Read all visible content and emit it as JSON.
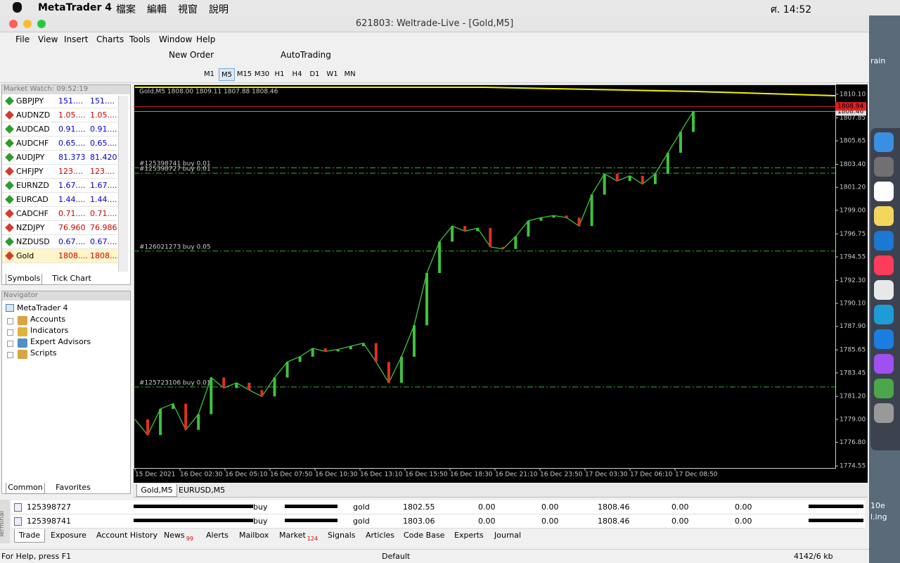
{
  "mac_menu": {
    "app": "MetaTrader 4",
    "items": [
      "檔案",
      "編輯",
      "視窗",
      "說明"
    ],
    "clock": "ศ. 14:52"
  },
  "window_title": "621803: Weltrade-Live - [Gold,M5]",
  "menu": [
    "File",
    "View",
    "Insert",
    "Charts",
    "Tools",
    "Window",
    "Help"
  ],
  "toolbar": {
    "new_order": "New Order",
    "auto_trading": "AutoTrading",
    "timeframes": [
      "M1",
      "M5",
      "M15",
      "M30",
      "H1",
      "H4",
      "D1",
      "W1",
      "MN"
    ],
    "active_timeframe": "M5"
  },
  "market_watch": {
    "title": "Market Watch: 09:52:19",
    "rows": [
      {
        "symbol": "GBPJPY",
        "bid": "151....",
        "ask": "151....",
        "direction": "up"
      },
      {
        "symbol": "AUDNZD",
        "bid": "1.05....",
        "ask": "1.05....",
        "direction": "down"
      },
      {
        "symbol": "AUDCAD",
        "bid": "0.91....",
        "ask": "0.91....",
        "direction": "up"
      },
      {
        "symbol": "AUDCHF",
        "bid": "0.65....",
        "ask": "0.65....",
        "direction": "up"
      },
      {
        "symbol": "AUDJPY",
        "bid": "81.373",
        "ask": "81.420",
        "direction": "up"
      },
      {
        "symbol": "CHFJPY",
        "bid": "123....",
        "ask": "123....",
        "direction": "down"
      },
      {
        "symbol": "EURNZD",
        "bid": "1.67....",
        "ask": "1.67....",
        "direction": "up"
      },
      {
        "symbol": "EURCAD",
        "bid": "1.44....",
        "ask": "1.44....",
        "direction": "up"
      },
      {
        "symbol": "CADCHF",
        "bid": "0.71....",
        "ask": "0.71....",
        "direction": "down"
      },
      {
        "symbol": "NZDJPY",
        "bid": "76.960",
        "ask": "76.986",
        "direction": "down"
      },
      {
        "symbol": "NZDUSD",
        "bid": "0.67....",
        "ask": "0.67....",
        "direction": "up"
      },
      {
        "symbol": "Gold",
        "bid": "1808....",
        "ask": "1808....",
        "direction": "down"
      }
    ],
    "tabs": [
      "Symbols",
      "Tick Chart"
    ]
  },
  "navigator": {
    "title": "Navigator",
    "root": "MetaTrader 4",
    "items": [
      "Accounts",
      "Indicators",
      "Expert Advisors",
      "Scripts"
    ],
    "tabs": [
      "Common",
      "Favorites"
    ]
  },
  "chart": {
    "header": "Gold,M5 1808.00 1809.11 1807.88 1808.46",
    "ylim": [
      1774.35,
      1811.04
    ],
    "yticks": [
      {
        "value": 1810.1,
        "label": "1810.10"
      },
      {
        "value": 1807.85,
        "label": "1807.85"
      },
      {
        "value": 1805.65,
        "label": "1805.65"
      },
      {
        "value": 1803.4,
        "label": "1803.40"
      },
      {
        "value": 1801.2,
        "label": "1801.20"
      },
      {
        "value": 1799,
        "label": "1799.00"
      },
      {
        "value": 1796.75,
        "label": "1796.75"
      },
      {
        "value": 1794.55,
        "label": "1794.55"
      },
      {
        "value": 1792.3,
        "label": "1792.30"
      },
      {
        "value": 1790.1,
        "label": "1790.10"
      },
      {
        "value": 1787.9,
        "label": "1787.90"
      },
      {
        "value": 1785.65,
        "label": "1785.65"
      },
      {
        "value": 1783.45,
        "label": "1783.45"
      },
      {
        "value": 1781.2,
        "label": "1781.20"
      },
      {
        "value": 1779,
        "label": "1779.00"
      },
      {
        "value": 1776.8,
        "label": "1776.80"
      },
      {
        "value": 1774.55,
        "label": "1774.55"
      }
    ],
    "time_labels": [
      "15 Dec 2021",
      "16 Dec 02:30",
      "16 Dec 05:10",
      "16 Dec 07:50",
      "16 Dec 10:30",
      "16 Dec 13:10",
      "16 Dec 15:50",
      "16 Dec 18:30",
      "16 Dec 21:10",
      "16 Dec 23:50",
      "17 Dec 03:30",
      "17 Dec 06:10",
      "17 Dec 08:50"
    ],
    "closes": [
      1779,
      1777.5,
      1780,
      1780.5,
      1778,
      1779.5,
      1783,
      1782,
      1782.5,
      1781.8,
      1781.2,
      1783,
      1784.5,
      1785,
      1785.8,
      1785.5,
      1785.7,
      1786,
      1786.3,
      1784.5,
      1782.5,
      1785,
      1788,
      1793,
      1796,
      1797.5,
      1797,
      1797.3,
      1795.5,
      1795.3,
      1796.5,
      1798,
      1798.3,
      1798.5,
      1798.3,
      1797.5,
      1800.5,
      1802.5,
      1801.8,
      1802.3,
      1801.5,
      1802.5,
      1804.5,
      1806.5,
      1808.46
    ],
    "color": "#3ec23e",
    "orders": [
      {
        "label": "#125398741 buy 0.01",
        "price": 1803.06
      },
      {
        "label": "#125398727 buy 0.01",
        "price": 1802.55
      },
      {
        "label": "#126021273 buy 0.05",
        "price": 1795.1
      },
      {
        "label": "#125723106 buy 0.01",
        "price": 1782.1
      }
    ],
    "bid": 1808.46,
    "ask": 1808.94
  },
  "chart_tabs": [
    "Gold,M5",
    "EURUSD,M5"
  ],
  "terminal": {
    "side_label": "Terminal",
    "rows": [
      [
        "125398727",
        "buy",
        "gold",
        "1802.55",
        "0.00",
        "0.00",
        "1808.46",
        "0.00",
        "0.00"
      ],
      [
        "125398741",
        "buy",
        "gold",
        "1803.06",
        "0.00",
        "0.00",
        "1808.46",
        "0.00",
        "0.00"
      ]
    ],
    "tabs": [
      {
        "label": "Trade"
      },
      {
        "label": "Exposure"
      },
      {
        "label": "Account History"
      },
      {
        "label": "News",
        "count": 99
      },
      {
        "label": "Alerts"
      },
      {
        "label": "Mailbox"
      },
      {
        "label": "Market",
        "count": 124
      },
      {
        "label": "Signals"
      },
      {
        "label": "Articles"
      },
      {
        "label": "Code Base"
      },
      {
        "label": "Experts"
      },
      {
        "label": "Journal"
      }
    ]
  },
  "status": {
    "help": "For Help, press F1",
    "profile": "Default",
    "traffic": "4142/6 kb"
  },
  "desktop_text": [
    "rain",
    "10e",
    "l.ing"
  ]
}
